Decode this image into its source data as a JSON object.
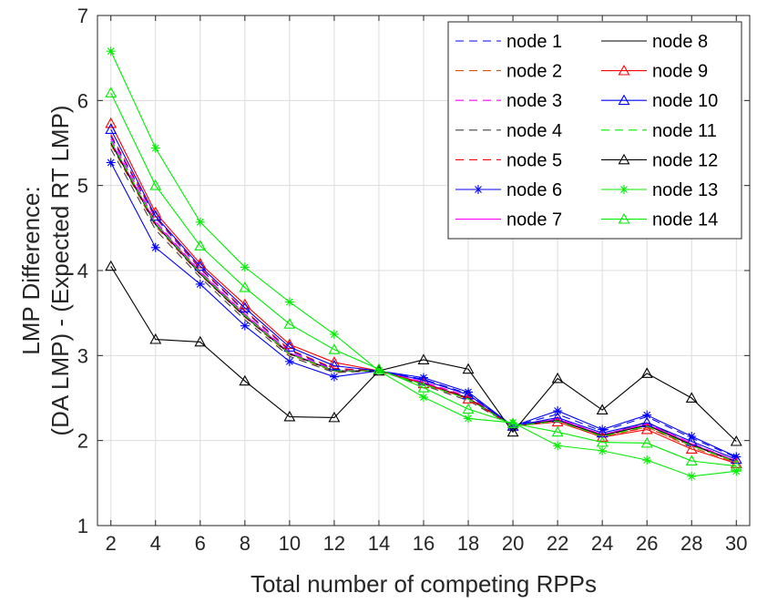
{
  "chart_data": {
    "type": "line",
    "title": "",
    "xlabel": "Total number of competing RPPs",
    "ylabel_lines": [
      "LMP Difference:",
      "(DA LMP) - (Expected RT LMP)"
    ],
    "xlim": [
      1.4,
      30.6
    ],
    "ylim": [
      1,
      7
    ],
    "grid": true,
    "legend_position": "top-right",
    "x": [
      2,
      4,
      6,
      8,
      10,
      12,
      14,
      16,
      18,
      20,
      22,
      24,
      26,
      28,
      30
    ],
    "xticks": [
      2,
      4,
      6,
      8,
      10,
      12,
      14,
      16,
      18,
      20,
      22,
      24,
      26,
      28,
      30
    ],
    "yticks": [
      1,
      2,
      3,
      4,
      5,
      6,
      7
    ],
    "series": [
      {
        "name": "node 1",
        "color": "#0000ff",
        "dash": "dashed",
        "marker": "none",
        "values": [
          5.58,
          4.62,
          4.02,
          3.52,
          3.06,
          2.84,
          2.82,
          2.72,
          2.55,
          2.17,
          2.31,
          2.11,
          2.28,
          2.03,
          1.8
        ]
      },
      {
        "name": "node 2",
        "color": "#d95319",
        "dash": "dashed",
        "marker": "none",
        "values": [
          5.48,
          4.52,
          3.95,
          3.45,
          3.01,
          2.81,
          2.82,
          2.66,
          2.49,
          2.17,
          2.22,
          2.04,
          2.16,
          1.92,
          1.74
        ]
      },
      {
        "name": "node 3",
        "color": "#ff00ff",
        "dash": "dashed",
        "marker": "none",
        "values": [
          5.55,
          4.58,
          3.99,
          3.49,
          3.04,
          2.83,
          2.82,
          2.69,
          2.52,
          2.17,
          2.26,
          2.07,
          2.2,
          1.97,
          1.76
        ]
      },
      {
        "name": "node 4",
        "color": "#404040",
        "dash": "dashed",
        "marker": "none",
        "values": [
          5.43,
          4.48,
          3.92,
          3.42,
          2.99,
          2.8,
          2.82,
          2.65,
          2.47,
          2.17,
          2.24,
          2.06,
          2.22,
          1.95,
          1.75
        ]
      },
      {
        "name": "node 5",
        "color": "#ff0000",
        "dash": "dashed",
        "marker": "none",
        "values": [
          5.6,
          4.63,
          4.03,
          3.53,
          3.07,
          2.85,
          2.82,
          2.68,
          2.51,
          2.17,
          2.24,
          2.06,
          2.15,
          1.94,
          1.75
        ]
      },
      {
        "name": "node 6",
        "color": "#0000ff",
        "dash": "solid",
        "marker": "star",
        "values": [
          5.27,
          4.27,
          3.84,
          3.35,
          2.93,
          2.75,
          2.82,
          2.74,
          2.57,
          2.17,
          2.35,
          2.13,
          2.3,
          2.05,
          1.81
        ]
      },
      {
        "name": "node 7",
        "color": "#ff00ff",
        "dash": "solid",
        "marker": "none",
        "values": [
          5.52,
          4.56,
          3.98,
          3.48,
          3.03,
          2.82,
          2.82,
          2.68,
          2.5,
          2.17,
          2.25,
          2.07,
          2.19,
          1.96,
          1.76
        ]
      },
      {
        "name": "node 8",
        "color": "#000000",
        "dash": "solid",
        "marker": "none",
        "values": [
          5.5,
          4.54,
          3.96,
          3.46,
          3.02,
          2.82,
          2.82,
          2.67,
          2.5,
          2.17,
          2.24,
          2.06,
          2.18,
          1.95,
          1.75
        ]
      },
      {
        "name": "node 9",
        "color": "#ff0000",
        "dash": "solid",
        "marker": "triangle",
        "values": [
          5.73,
          4.68,
          4.08,
          3.6,
          3.13,
          2.92,
          2.82,
          2.67,
          2.49,
          2.17,
          2.22,
          2.04,
          2.13,
          1.9,
          1.73
        ]
      },
      {
        "name": "node 10",
        "color": "#0000ff",
        "dash": "solid",
        "marker": "triangle",
        "values": [
          5.66,
          4.64,
          4.05,
          3.56,
          3.1,
          2.88,
          2.82,
          2.71,
          2.54,
          2.17,
          2.27,
          2.09,
          2.21,
          1.99,
          1.78
        ]
      },
      {
        "name": "node 11",
        "color": "#00ee00",
        "dash": "dashed",
        "marker": "none",
        "values": [
          5.52,
          4.55,
          3.97,
          3.47,
          3.02,
          2.82,
          2.82,
          2.66,
          2.49,
          2.17,
          2.23,
          2.05,
          2.17,
          1.94,
          1.75
        ]
      },
      {
        "name": "node 12",
        "color": "#000000",
        "dash": "solid",
        "marker": "triangle",
        "values": [
          4.05,
          3.19,
          3.16,
          2.7,
          2.28,
          2.27,
          2.82,
          2.95,
          2.84,
          2.1,
          2.73,
          2.36,
          2.79,
          2.5,
          1.99
        ]
      },
      {
        "name": "node 13",
        "color": "#00ee00",
        "dash": "solid",
        "marker": "star",
        "values": [
          6.58,
          5.44,
          4.57,
          4.04,
          3.63,
          3.25,
          2.82,
          2.51,
          2.26,
          2.21,
          1.94,
          1.88,
          1.77,
          1.58,
          1.64
        ]
      },
      {
        "name": "node 14",
        "color": "#00ee00",
        "dash": "solid",
        "marker": "triangle",
        "values": [
          6.09,
          5.0,
          4.29,
          3.8,
          3.37,
          3.07,
          2.84,
          2.62,
          2.37,
          2.2,
          2.1,
          1.98,
          1.97,
          1.76,
          1.7
        ]
      }
    ]
  }
}
